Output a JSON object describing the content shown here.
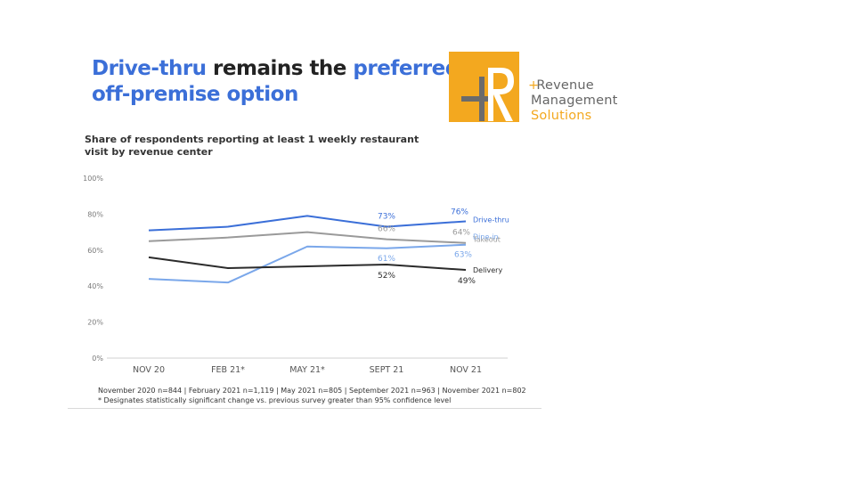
{
  "headline": {
    "part1": "Drive-thru",
    "part2": " remains the ",
    "part3": "preferred",
    "part4": "off-premise option"
  },
  "logo": {
    "line1": "Revenue",
    "line2": "Management",
    "line3": "Solutions",
    "box_color": "#f3a81f",
    "text_color_primary": "#666666",
    "text_color_accent": "#f3a81f"
  },
  "footnote": {
    "line1": "November 2020 n=844 | February 2021 n=1,119 | May 2021 n=805 | September 2021 n=963 | November 2021 n=802",
    "line2": "* Designates statistically significant change vs. previous survey greater than 95% confidence level"
  },
  "chart_data": {
    "type": "line",
    "title": "Share of respondents reporting at least 1 weekly restaurant visit by revenue center",
    "xlabel": "",
    "ylabel": "",
    "categories": [
      "NOV 20",
      "FEB 21*",
      "MAY 21*",
      "SEPT 21",
      "NOV 21"
    ],
    "yticks": [
      "0%",
      "20%",
      "40%",
      "60%",
      "80%",
      "100%"
    ],
    "ylim": [
      0,
      100
    ],
    "grid": false,
    "legend": "inline-right",
    "series": [
      {
        "name": "Drive-thru",
        "color": "#3b6fd8",
        "values": [
          71,
          73,
          79,
          73,
          76
        ],
        "labels": [
          null,
          null,
          null,
          "73%",
          "76%"
        ]
      },
      {
        "name": "Takeout",
        "color": "#9a9a9a",
        "values": [
          65,
          67,
          70,
          66,
          64
        ],
        "labels": [
          null,
          null,
          null,
          "66%",
          "64%"
        ]
      },
      {
        "name": "Dine-in",
        "color": "#7aa7ea",
        "values": [
          44,
          42,
          62,
          61,
          63
        ],
        "labels": [
          null,
          null,
          null,
          "61%",
          "63%"
        ]
      },
      {
        "name": "Delivery",
        "color": "#2b2b2b",
        "values": [
          56,
          50,
          51,
          52,
          49
        ],
        "labels": [
          null,
          null,
          null,
          "52%",
          "49%"
        ]
      }
    ]
  }
}
